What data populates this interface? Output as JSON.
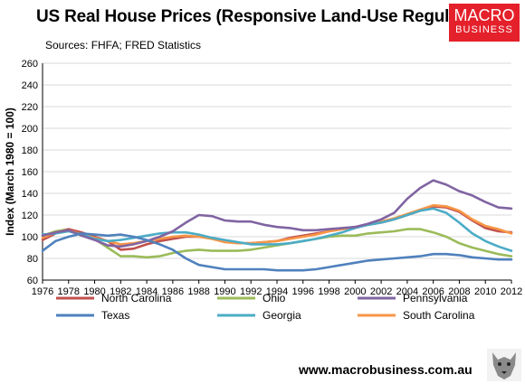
{
  "chart_data": {
    "type": "line",
    "title": "US Real House Prices (Responsive Land-Use Regulation)",
    "subtitle": "Sources: FHFA;  FRED Statistics",
    "ylabel": "Index (March 1980  = 100)",
    "xlabel": "",
    "xlim": [
      1976,
      2012
    ],
    "ylim": [
      60,
      260
    ],
    "x_ticks": [
      "1976",
      "1978",
      "1980",
      "1982",
      "1984",
      "1986",
      "1988",
      "1990",
      "1992",
      "1994",
      "1996",
      "1998",
      "2000",
      "2002",
      "2004",
      "2006",
      "2008",
      "2010",
      "2012"
    ],
    "y_ticks": [
      "60",
      "80",
      "100",
      "120",
      "140",
      "160",
      "180",
      "200",
      "220",
      "240",
      "260"
    ],
    "grid": "horizontal",
    "legend_position": "bottom",
    "x": [
      1976,
      1977,
      1978,
      1979,
      1980,
      1981,
      1982,
      1983,
      1984,
      1985,
      1986,
      1987,
      1988,
      1989,
      1990,
      1991,
      1992,
      1993,
      1994,
      1995,
      1996,
      1997,
      1998,
      1999,
      2000,
      2001,
      2002,
      2003,
      2004,
      2005,
      2006,
      2007,
      2008,
      2009,
      2010,
      2011,
      2012
    ],
    "series": [
      {
        "name": "North Carolina",
        "color": "#c0504d",
        "values": [
          97,
          103,
          107,
          104,
          100,
          96,
          88,
          89,
          93,
          96,
          98,
          100,
          100,
          99,
          96,
          94,
          94,
          95,
          96,
          99,
          101,
          103,
          105,
          107,
          109,
          111,
          113,
          116,
          120,
          124,
          128,
          127,
          123,
          115,
          108,
          105,
          104
        ]
      },
      {
        "name": "Ohio",
        "color": "#9bbb59",
        "values": [
          101,
          105,
          107,
          103,
          98,
          90,
          82,
          82,
          81,
          82,
          85,
          87,
          88,
          87,
          87,
          87,
          88,
          90,
          92,
          94,
          96,
          98,
          100,
          101,
          101,
          103,
          104,
          105,
          107,
          107,
          104,
          100,
          94,
          90,
          87,
          84,
          82
        ]
      },
      {
        "name": "Pennsylvania",
        "color": "#8064a2",
        "values": [
          101,
          104,
          106,
          101,
          97,
          92,
          91,
          93,
          96,
          100,
          105,
          113,
          120,
          119,
          115,
          114,
          114,
          111,
          109,
          108,
          106,
          106,
          107,
          108,
          109,
          112,
          116,
          122,
          135,
          145,
          152,
          148,
          142,
          138,
          132,
          127,
          126
        ]
      },
      {
        "name": "Texas",
        "color": "#4f81bd",
        "values": [
          87,
          96,
          100,
          103,
          102,
          101,
          102,
          100,
          97,
          93,
          88,
          80,
          74,
          72,
          70,
          70,
          70,
          70,
          69,
          69,
          69,
          70,
          72,
          74,
          76,
          78,
          79,
          80,
          81,
          82,
          84,
          84,
          83,
          81,
          80,
          79,
          79
        ]
      },
      {
        "name": "Georgia",
        "color": "#4bacc6",
        "values": [
          102,
          103,
          105,
          102,
          98,
          96,
          97,
          99,
          101,
          103,
          104,
          104,
          102,
          99,
          97,
          95,
          93,
          93,
          93,
          94,
          96,
          98,
          101,
          104,
          108,
          111,
          113,
          116,
          120,
          124,
          126,
          122,
          113,
          103,
          96,
          91,
          87
        ]
      },
      {
        "name": "South Carolina",
        "color": "#f79646",
        "values": [
          99,
          104,
          106,
          102,
          99,
          96,
          93,
          94,
          96,
          98,
          100,
          101,
          100,
          98,
          95,
          94,
          94,
          95,
          96,
          98,
          100,
          102,
          105,
          107,
          109,
          111,
          114,
          117,
          121,
          125,
          129,
          128,
          124,
          116,
          110,
          107,
          103
        ]
      }
    ]
  },
  "branding": {
    "logo_line1": "MACRO",
    "logo_line2": "BUSINESS",
    "url": "www.macrobusiness.com.au",
    "logo_color": "#e4202a"
  }
}
